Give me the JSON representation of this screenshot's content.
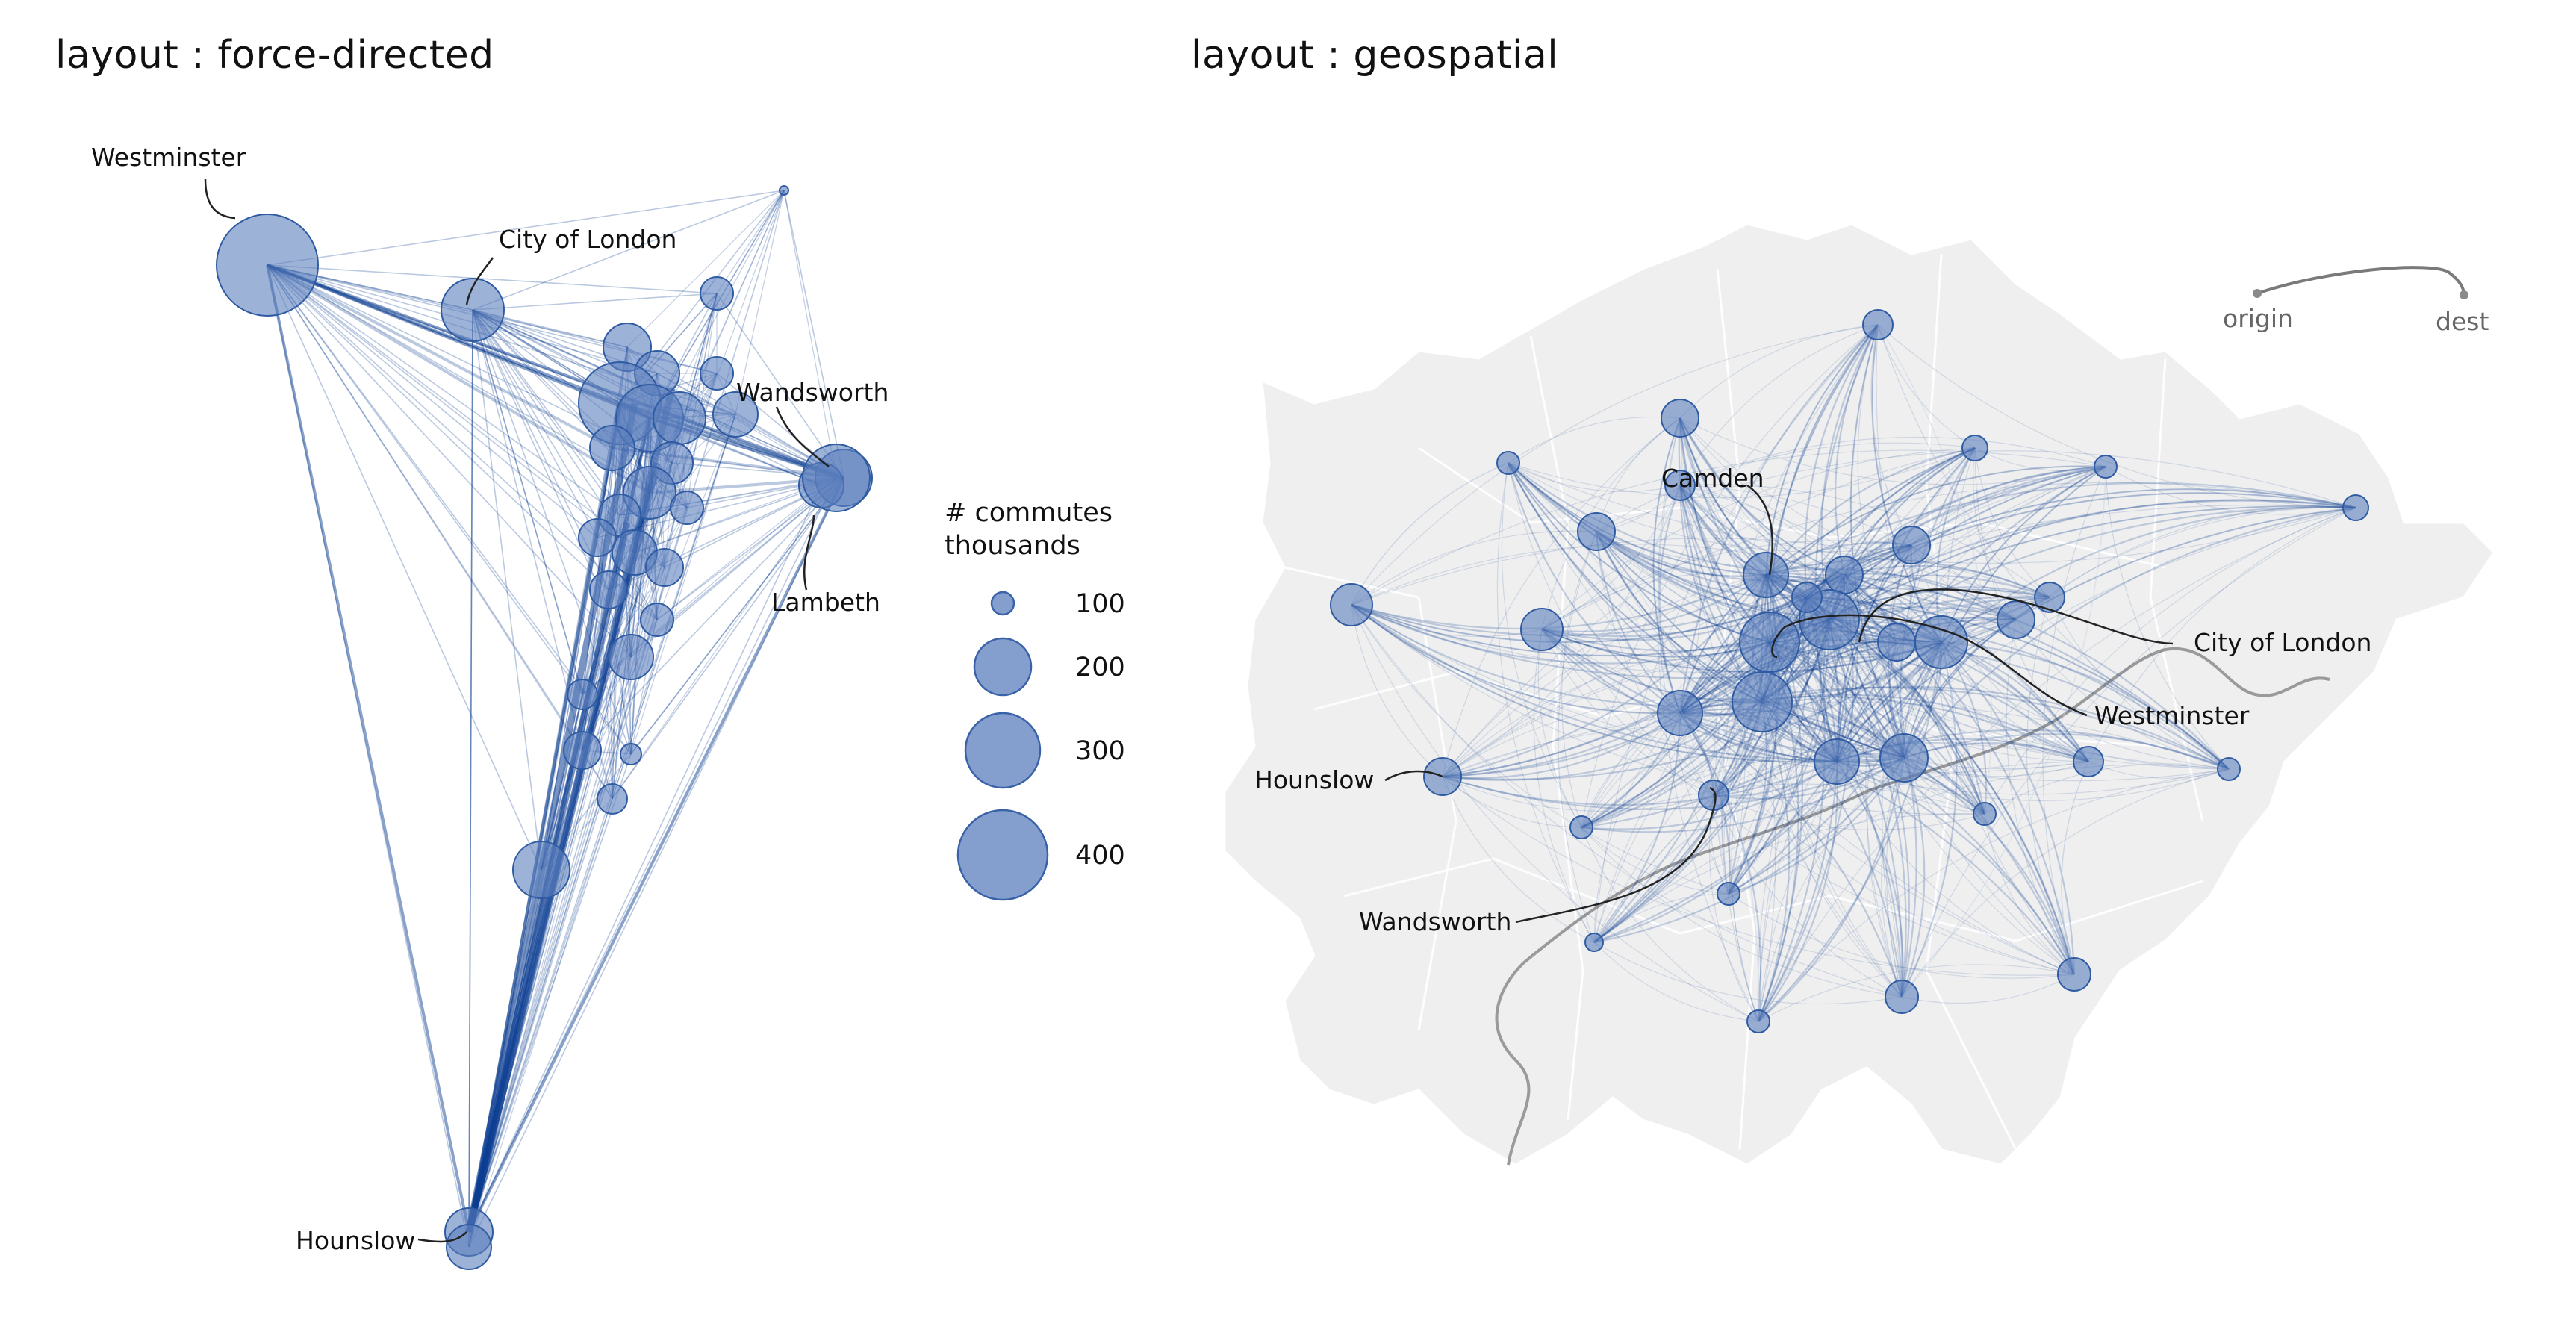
{
  "panels": {
    "left_title": "layout : force-directed",
    "right_title": "layout : geospatial"
  },
  "legend": {
    "title_line1": "# commutes",
    "title_line2": "thousands",
    "values": [
      "100",
      "200",
      "300",
      "400"
    ]
  },
  "od_key": {
    "origin": "origin",
    "dest": "dest"
  },
  "colors": {
    "node": "#5b7fbd",
    "edge": "#0b3d91",
    "land": "#efefef",
    "river": "#9a9a9a"
  },
  "left_labels": {
    "westminster": "Westminster",
    "city": "City of London",
    "wandsworth": "Wandsworth",
    "lambeth": "Lambeth",
    "hounslow": "Hounslow"
  },
  "right_labels": {
    "camden": "Camden",
    "city": "City of London",
    "westminster": "Westminster",
    "hounslow": "Hounslow",
    "wandsworth": "Wandsworth"
  }
}
